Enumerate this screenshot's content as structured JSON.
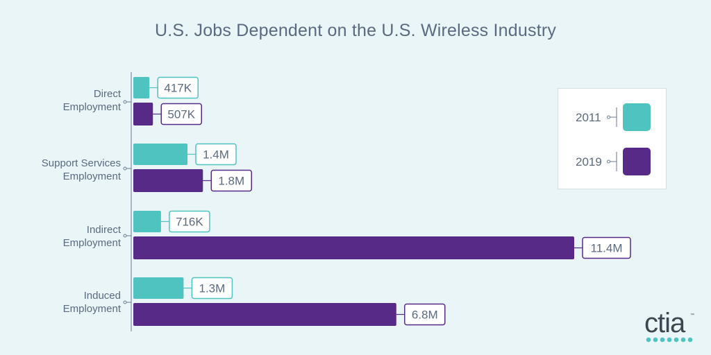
{
  "chart_data": {
    "type": "bar",
    "orientation": "horizontal",
    "title": "U.S. Jobs Dependent on the U.S. Wireless Industry",
    "categories": [
      "Direct Employment",
      "Support Services Employment",
      "Indirect Employment",
      "Induced Employment"
    ],
    "category_lines": [
      [
        "Direct",
        "Employment"
      ],
      [
        "Support Services",
        "Employment"
      ],
      [
        "Indirect",
        "Employment"
      ],
      [
        "Induced",
        "Employment"
      ]
    ],
    "series": [
      {
        "name": "2011",
        "color": "#4fc3bf",
        "values": [
          417000,
          1400000,
          716000,
          1300000
        ],
        "labels": [
          "417K",
          "1.4M",
          "716K",
          "1.3M"
        ]
      },
      {
        "name": "2019",
        "color": "#562a86",
        "values": [
          507000,
          1800000,
          11400000,
          6800000
        ],
        "labels": [
          "507K",
          "1.8M",
          "11.4M",
          "6.8M"
        ]
      }
    ],
    "legend_position": "right",
    "grid": false
  },
  "brand": {
    "logo_text": "ctia",
    "trademark": "™"
  }
}
